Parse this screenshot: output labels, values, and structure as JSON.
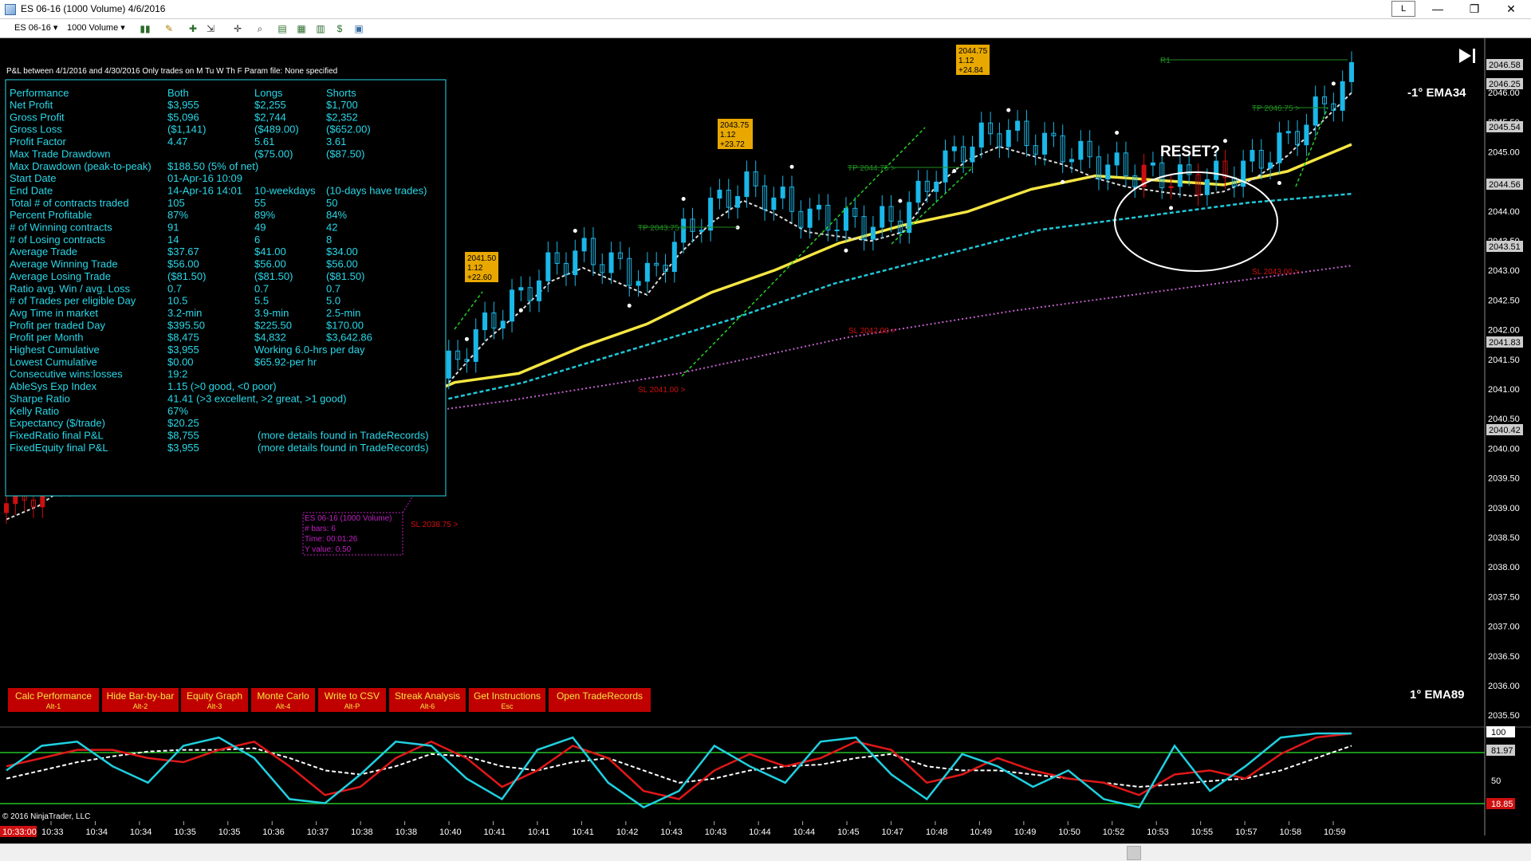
{
  "window": {
    "title": "ES 06-16 (1000 Volume)  4/6/2016",
    "layout_button": "L",
    "minimize": "—",
    "restore": "❐",
    "close": "✕"
  },
  "toolbar": {
    "instrument": "ES 06-16",
    "interval": "1000 Volume"
  },
  "pnl": {
    "header": "P&L between 4/1/2016 and 4/30/2016  Only trades on M Tu W Th F   Param file: None specified",
    "columns": [
      "Performance",
      "Both",
      "Longs",
      "Shorts"
    ],
    "rows": [
      [
        "Net Profit",
        "$3,955",
        "$2,255",
        "$1,700"
      ],
      [
        "Gross Profit",
        "$5,096",
        "$2,744",
        "$2,352"
      ],
      [
        "Gross Loss",
        "($1,141)",
        "($489.00)",
        "($652.00)"
      ],
      [
        "Profit Factor",
        "4.47",
        "5.61",
        "3.61"
      ],
      [
        "Max Trade Drawdown",
        "",
        "($75.00)",
        "($87.50)"
      ],
      [
        "Max Drawdown (peak-to-peak)",
        "$188.50 (5% of net)",
        "",
        ""
      ],
      [
        "Start Date",
        "01-Apr-16 10:09",
        "",
        ""
      ],
      [
        "End Date",
        "14-Apr-16 14:01",
        "10-weekdays",
        "(10-days have trades)"
      ],
      [
        "Total # of contracts traded",
        "105",
        "55",
        "50"
      ],
      [
        "Percent Profitable",
        "87%",
        "89%",
        "84%"
      ],
      [
        "# of Winning contracts",
        "91",
        "49",
        "42"
      ],
      [
        "# of Losing contracts",
        "14",
        "6",
        "8"
      ],
      [
        "Average Trade",
        "$37.67",
        "$41.00",
        "$34.00"
      ],
      [
        "Average Winning Trade",
        "$56.00",
        "$56.00",
        "$56.00"
      ],
      [
        "Average Losing Trade",
        "($81.50)",
        "($81.50)",
        "($81.50)"
      ],
      [
        "Ratio avg. Win / avg. Loss",
        "0.7",
        "0.7",
        "0.7"
      ],
      [
        "# of Trades per eligible Day",
        "10.5",
        "5.5",
        "5.0"
      ],
      [
        "Avg Time in market",
        "3.2-min",
        "3.9-min",
        "2.5-min"
      ],
      [
        "Profit per traded Day",
        "$395.50",
        "$225.50",
        "$170.00"
      ],
      [
        "Profit per Month",
        "$8,475",
        "$4,832",
        "$3,642.86"
      ],
      [
        "Highest Cumulative",
        "$3,955",
        "Working 6.0-hrs per day",
        ""
      ],
      [
        "Lowest Cumulative",
        "$0.00",
        "$65.92-per hr",
        ""
      ],
      [
        "Consecutive wins:losses",
        "19:2",
        "",
        ""
      ],
      [
        "AbleSys Exp Index",
        "1.15 (>0 good, <0 poor)",
        "",
        ""
      ],
      [
        "Sharpe Ratio",
        "41.41 (>3 excellent, >2 great, >1 good)",
        "",
        ""
      ],
      [
        "Kelly Ratio",
        "67%",
        "",
        ""
      ],
      [
        "Expectancy ($/trade)",
        "$20.25",
        "",
        ""
      ],
      [
        "FixedRatio final P&L",
        "$8,755",
        "(more details found in TradeRecords)",
        ""
      ],
      [
        "FixedEquity final P&L",
        "$3,955",
        "(more details found in TradeRecords)",
        ""
      ]
    ]
  },
  "buttons": [
    {
      "label": "Calc Performance",
      "hotkey": "Alt-1"
    },
    {
      "label": "Hide Bar-by-bar",
      "hotkey": "Alt-2"
    },
    {
      "label": "Equity Graph",
      "hotkey": "Alt-3"
    },
    {
      "label": "Monte Carlo",
      "hotkey": "Alt-4"
    },
    {
      "label": "Write to CSV",
      "hotkey": "Alt-P"
    },
    {
      "label": "Streak Analysis",
      "hotkey": "Alt-6"
    },
    {
      "label": "Get Instructions",
      "hotkey": "Esc"
    },
    {
      "label": "Open TradeRecords",
      "hotkey": ""
    }
  ],
  "annotations": {
    "reset": "RESET?",
    "ema34": "-1° EMA34",
    "ema89": "1° EMA89",
    "r1": "R1",
    "copyright": "© 2016 NinjaTrader, LLC",
    "tooltip": [
      "ES 06-16 (1000 Volume)",
      "# bars:   6",
      "Time:    00:01:26",
      "Y value: 0.50"
    ],
    "tp_labels": [
      "TP 2043.75 >",
      "TP 2044.75 >",
      "TP 2046.75 >"
    ],
    "sl_labels": [
      "SL 2041.00 >",
      "SL 2042.00 >",
      "SL 2038.75 >",
      "SL 2043.00 >"
    ],
    "trade_boxes": [
      [
        "2041.50",
        "1.12",
        "+22.60"
      ],
      [
        "2043.75",
        "1.12",
        "+23.72"
      ],
      [
        "2044.75",
        "1.12",
        "+24.84"
      ]
    ]
  },
  "price_axis": {
    "ticks": [
      "2046.00",
      "2045.50",
      "2045.00",
      "2044.50",
      "2044.00",
      "2043.50",
      "2043.00",
      "2042.50",
      "2042.00",
      "2041.50",
      "2041.00",
      "2040.50",
      "2040.00",
      "2039.50",
      "2039.00",
      "2038.50",
      "2038.00",
      "2037.50",
      "2037.00",
      "2036.50",
      "2036.00",
      "2035.50"
    ],
    "markers": [
      "2046.58",
      "2046.25",
      "2045.54",
      "2044.56",
      "2043.51",
      "2041.83",
      "2040.42"
    ]
  },
  "osc_axis": {
    "ticks": [
      "100",
      "81.97",
      "50",
      "18.85"
    ]
  },
  "time_axis": {
    "current": "10:33:00",
    "ticks": [
      "10:33",
      "10:34",
      "10:34",
      "10:35",
      "10:35",
      "10:36",
      "10:37",
      "10:38",
      "10:38",
      "10:40",
      "10:41",
      "10:41",
      "10:41",
      "10:42",
      "10:43",
      "10:43",
      "10:44",
      "10:44",
      "10:45",
      "10:47",
      "10:48",
      "10:49",
      "10:49",
      "10:50",
      "10:52",
      "10:53",
      "10:55",
      "10:57",
      "10:58",
      "10:59"
    ]
  },
  "chart_data": {
    "type": "candlestick",
    "symbol": "ES 06-16",
    "interval": "1000 Volume",
    "ylim": [
      2035.3,
      2046.75
    ],
    "price_close_samples": [
      2036.6,
      2036.9,
      2037.4,
      2037.8,
      2038.3,
      2038.9,
      2039.5,
      2039.9,
      2039.3,
      2039.6,
      2039.2,
      2038.4,
      2037.8,
      2039.0,
      2039.8,
      2040.6,
      2041.2,
      2041.9,
      2042.2,
      2041.9,
      2041.6,
      2042.5,
      2043.2,
      2043.7,
      2043.4,
      2043.0,
      2042.9,
      2042.8,
      2043.0,
      2044.0,
      2044.6,
      2044.9,
      2044.7,
      2044.5,
      2044.2,
      2044.0,
      2043.9,
      2043.8,
      2043.9,
      2044.2,
      2044.7,
      2045.4,
      2046.1
    ],
    "ema34_samples": [
      2037.3,
      2037.1,
      2037.4,
      2038.0,
      2038.4,
      2038.6,
      2038.7,
      2039.3,
      2039.5,
      2040.1,
      2040.6,
      2041.3,
      2041.8,
      2042.4,
      2042.8,
      2043.1,
      2043.6,
      2043.9,
      2043.8,
      2043.7,
      2044.0,
      2044.6
    ],
    "ema89_samples": [
      2038.0,
      2037.8,
      2038.2,
      2038.6,
      2038.8,
      2039.3,
      2040.0,
      2040.7,
      2041.5,
      2042.1,
      2042.7,
      2043.0,
      2043.3,
      2043.5
    ],
    "ema200_samples": [
      2038.2,
      2038.1,
      2038.4,
      2038.9,
      2039.5,
      2040.3,
      2040.9,
      2041.4,
      2041.9
    ],
    "oscillator": {
      "ylim": [
        0,
        100
      ],
      "levels": [
        81.97,
        18.85
      ],
      "fast": [
        55,
        85,
        90,
        60,
        40,
        85,
        95,
        70,
        20,
        15,
        50,
        90,
        85,
        45,
        20,
        80,
        95,
        40,
        10,
        30,
        85,
        60,
        40,
        90,
        95,
        50,
        20,
        75,
        60,
        35,
        55,
        20,
        10,
        85,
        30,
        60,
        95,
        100,
        100
      ],
      "slow": [
        60,
        70,
        80,
        80,
        70,
        65,
        80,
        90,
        60,
        25,
        35,
        70,
        90,
        70,
        35,
        55,
        85,
        70,
        30,
        20,
        55,
        75,
        60,
        70,
        90,
        80,
        40,
        50,
        70,
        55,
        45,
        40,
        25,
        50,
        55,
        45,
        75,
        95,
        100
      ],
      "signal": [
        45,
        55,
        65,
        72,
        78,
        80,
        80,
        82,
        70,
        55,
        50,
        60,
        75,
        72,
        60,
        55,
        65,
        70,
        55,
        40,
        45,
        55,
        60,
        62,
        70,
        75,
        60,
        55,
        55,
        50,
        45,
        40,
        35,
        38,
        42,
        45,
        55,
        70,
        85
      ]
    }
  },
  "colors": {
    "background": "#000000",
    "ema34": "#f5e642",
    "ema89": "#20c8d8",
    "ema200": "#c060c8",
    "candle_up": "#1ab8e8",
    "candle_down": "#cc1010",
    "tp": "#1f8c1f",
    "sl": "#d01010",
    "button_bg": "#c00000",
    "osc_fast": "#20d0e0",
    "osc_slow": "#e01818"
  }
}
